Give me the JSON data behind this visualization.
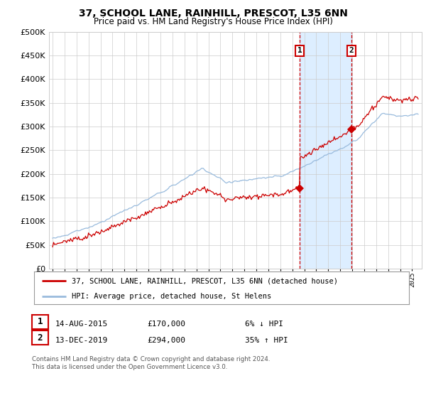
{
  "title": "37, SCHOOL LANE, RAINHILL, PRESCOT, L35 6NN",
  "subtitle": "Price paid vs. HM Land Registry's House Price Index (HPI)",
  "property_label": "37, SCHOOL LANE, RAINHILL, PRESCOT, L35 6NN (detached house)",
  "hpi_label": "HPI: Average price, detached house, St Helens",
  "sale1_date": "14-AUG-2015",
  "sale1_price": 170000,
  "sale1_pct": "6% ↓ HPI",
  "sale2_date": "13-DEC-2019",
  "sale2_price": 294000,
  "sale2_pct": "35% ↑ HPI",
  "footer": "Contains HM Land Registry data © Crown copyright and database right 2024.\nThis data is licensed under the Open Government Licence v3.0.",
  "property_color": "#cc0000",
  "hpi_color": "#99bbdd",
  "sale1_year": 2015.62,
  "sale2_year": 2019.95,
  "ylim": [
    0,
    500000
  ],
  "xlim_start": 1994.7,
  "xlim_end": 2025.8,
  "background_color": "#ffffff",
  "shaded_color": "#ddeeff",
  "grid_color": "#cccccc"
}
